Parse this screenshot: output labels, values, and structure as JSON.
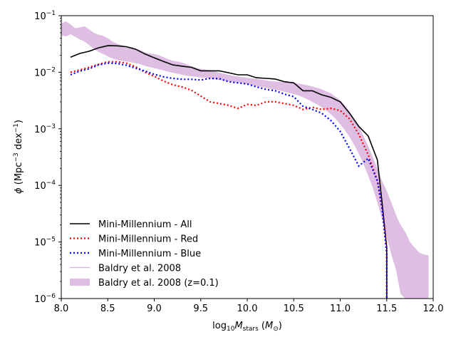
{
  "chart_data": {
    "type": "line",
    "title": "",
    "xlabel": "log10 M_stars (M_sun)",
    "ylabel": "phi (Mpc^-3 dex^-1)",
    "xlim": [
      8.0,
      12.0
    ],
    "ylim": [
      1e-06,
      0.1
    ],
    "yscale": "log",
    "grid": false,
    "legend_position": "lower-left",
    "x_ticks": [
      8.0,
      8.5,
      9.0,
      9.5,
      10.0,
      10.5,
      11.0,
      11.5,
      12.0
    ],
    "x_tick_labels": [
      "8.0",
      "8.5",
      "9.0",
      "9.5",
      "10.0",
      "10.5",
      "11.0",
      "11.5",
      "12.0"
    ],
    "y_ticks": [
      1e-06,
      1e-05,
      0.0001,
      0.001,
      0.01,
      0.1
    ],
    "y_tick_labels": [
      {
        "base": "10",
        "exp": "−6"
      },
      {
        "base": "10",
        "exp": "−5"
      },
      {
        "base": "10",
        "exp": "−4"
      },
      {
        "base": "10",
        "exp": "−3"
      },
      {
        "base": "10",
        "exp": "−2"
      },
      {
        "base": "10",
        "exp": "−1"
      }
    ],
    "series": [
      {
        "name": "Mini-Millennium - All",
        "color": "#000000",
        "style": "solid",
        "x": [
          8.1,
          8.2,
          8.3,
          8.4,
          8.5,
          8.6,
          8.7,
          8.8,
          8.9,
          9.0,
          9.1,
          9.2,
          9.3,
          9.4,
          9.5,
          9.6,
          9.7,
          9.8,
          9.9,
          10.0,
          10.1,
          10.2,
          10.3,
          10.4,
          10.5,
          10.6,
          10.7,
          10.8,
          10.9,
          11.0,
          11.1,
          11.2,
          11.3,
          11.4,
          11.45,
          11.5,
          11.5
        ],
        "y": [
          0.0185,
          0.0215,
          0.0235,
          0.027,
          0.0295,
          0.0293,
          0.0283,
          0.0255,
          0.021,
          0.018,
          0.0155,
          0.0135,
          0.0128,
          0.0122,
          0.0106,
          0.0106,
          0.0106,
          0.0098,
          0.009,
          0.009,
          0.008,
          0.0078,
          0.0076,
          0.0068,
          0.0065,
          0.0047,
          0.0047,
          0.004,
          0.0036,
          0.003,
          0.0019,
          0.0011,
          0.00075,
          0.00028,
          5e-05,
          8e-06,
          1e-06
        ]
      },
      {
        "name": "Mini-Millennium - Red",
        "color": "#ff0000",
        "style": "dotted",
        "x": [
          8.1,
          8.2,
          8.3,
          8.4,
          8.5,
          8.6,
          8.7,
          8.8,
          8.9,
          9.0,
          9.1,
          9.2,
          9.3,
          9.4,
          9.5,
          9.6,
          9.7,
          9.8,
          9.9,
          10.0,
          10.1,
          10.2,
          10.3,
          10.4,
          10.5,
          10.6,
          10.7,
          10.8,
          10.9,
          11.0,
          11.1,
          11.2,
          11.3,
          11.4,
          11.45,
          11.5,
          11.5
        ],
        "y": [
          0.01,
          0.011,
          0.0122,
          0.0138,
          0.0153,
          0.0153,
          0.0145,
          0.0125,
          0.01,
          0.0085,
          0.007,
          0.006,
          0.0055,
          0.0048,
          0.0038,
          0.003,
          0.0028,
          0.0026,
          0.0023,
          0.0027,
          0.0026,
          0.003,
          0.003,
          0.0028,
          0.0026,
          0.0022,
          0.0024,
          0.0022,
          0.0023,
          0.0021,
          0.0015,
          0.0008,
          0.00035,
          0.00012,
          4e-05,
          8e-06,
          1e-06
        ]
      },
      {
        "name": "Mini-Millennium - Blue",
        "color": "#0000ff",
        "style": "dotted",
        "x": [
          8.1,
          8.2,
          8.3,
          8.4,
          8.5,
          8.6,
          8.7,
          8.8,
          8.9,
          9.0,
          9.1,
          9.2,
          9.3,
          9.4,
          9.5,
          9.6,
          9.7,
          9.8,
          9.9,
          10.0,
          10.1,
          10.2,
          10.3,
          10.4,
          10.5,
          10.6,
          10.7,
          10.8,
          10.9,
          11.0,
          11.1,
          11.2,
          11.3,
          11.4,
          11.45,
          11.5,
          11.5
        ],
        "y": [
          0.009,
          0.0105,
          0.0115,
          0.0135,
          0.0145,
          0.0143,
          0.0133,
          0.0118,
          0.0105,
          0.0092,
          0.0083,
          0.0078,
          0.0075,
          0.0075,
          0.0073,
          0.0078,
          0.0077,
          0.0068,
          0.0065,
          0.0062,
          0.0055,
          0.005,
          0.0047,
          0.0041,
          0.0037,
          0.0025,
          0.0022,
          0.0019,
          0.0014,
          0.0009,
          0.00045,
          0.00022,
          0.0003,
          0.00012,
          4e-05,
          6e-06,
          1e-06
        ]
      },
      {
        "name": "Baldry et al. 2008",
        "color": "#d7b3dc",
        "style": "line"
      }
    ],
    "band": {
      "name": "Baldry et al. 2008 (z=0.1)",
      "color": "#dfbee3",
      "x": [
        8.0,
        8.05,
        8.1,
        8.15,
        8.2,
        8.25,
        8.3,
        8.35,
        8.4,
        8.45,
        8.5,
        8.55,
        8.6,
        8.65,
        8.7,
        8.75,
        8.8,
        8.85,
        8.9,
        8.95,
        9.0,
        9.05,
        9.1,
        9.15,
        9.2,
        9.25,
        9.3,
        9.35,
        9.4,
        9.45,
        9.5,
        9.55,
        9.6,
        9.65,
        9.7,
        9.75,
        9.8,
        9.85,
        9.9,
        9.95,
        10.0,
        10.05,
        10.1,
        10.15,
        10.2,
        10.25,
        10.3,
        10.35,
        10.4,
        10.45,
        10.5,
        10.55,
        10.6,
        10.65,
        10.7,
        10.75,
        10.8,
        10.85,
        10.9,
        10.95,
        11.0,
        11.05,
        11.1,
        11.15,
        11.2,
        11.25,
        11.3,
        11.35,
        11.4,
        11.45,
        11.5,
        11.55,
        11.6,
        11.65,
        11.7,
        11.75,
        11.8,
        11.85,
        11.9,
        11.95
      ],
      "upper": [
        0.072,
        0.08,
        0.07,
        0.06,
        0.062,
        0.065,
        0.057,
        0.05,
        0.046,
        0.044,
        0.04,
        0.035,
        0.032,
        0.03,
        0.028,
        0.028,
        0.0265,
        0.0245,
        0.0225,
        0.0215,
        0.021,
        0.02,
        0.0185,
        0.017,
        0.016,
        0.0155,
        0.0148,
        0.0138,
        0.0128,
        0.012,
        0.0115,
        0.0112,
        0.0108,
        0.0103,
        0.0098,
        0.0094,
        0.009,
        0.0087,
        0.0084,
        0.0082,
        0.008,
        0.0078,
        0.0076,
        0.0074,
        0.0072,
        0.007,
        0.0069,
        0.0068,
        0.0067,
        0.0066,
        0.0065,
        0.0063,
        0.0061,
        0.0059,
        0.0056,
        0.0053,
        0.005,
        0.0046,
        0.0042,
        0.0037,
        0.0032,
        0.0026,
        0.002,
        0.0015,
        0.0011,
        0.00075,
        0.0005,
        0.00032,
        0.0002,
        0.00012,
        8e-05,
        5e-05,
        3e-05,
        2e-05,
        1.5e-05,
        1e-05,
        8e-06,
        6.5e-06,
        6e-06,
        5.8e-06
      ],
      "lower": [
        0.045,
        0.043,
        0.047,
        0.042,
        0.038,
        0.035,
        0.03,
        0.026,
        0.023,
        0.021,
        0.019,
        0.0175,
        0.0165,
        0.016,
        0.0155,
        0.015,
        0.0145,
        0.0138,
        0.013,
        0.0123,
        0.0118,
        0.0113,
        0.0108,
        0.0102,
        0.0098,
        0.0094,
        0.009,
        0.0087,
        0.0085,
        0.0083,
        0.0081,
        0.0079,
        0.0077,
        0.0075,
        0.0073,
        0.0071,
        0.0069,
        0.0067,
        0.0065,
        0.0063,
        0.0061,
        0.0059,
        0.0057,
        0.0055,
        0.0053,
        0.0051,
        0.0049,
        0.0047,
        0.0045,
        0.0043,
        0.0041,
        0.0039,
        0.0036,
        0.0033,
        0.003,
        0.0027,
        0.0024,
        0.0021,
        0.0018,
        0.0015,
        0.0012,
        0.00095,
        0.00072,
        0.00052,
        0.00036,
        0.00024,
        0.00015,
        9e-05,
        5e-05,
        2.5e-05,
        1.2e-05,
        6e-06,
        3.2e-06,
        1.2e-06,
        1e-06,
        1e-06,
        1e-06,
        1e-06,
        1e-06,
        1e-06
      ]
    }
  }
}
